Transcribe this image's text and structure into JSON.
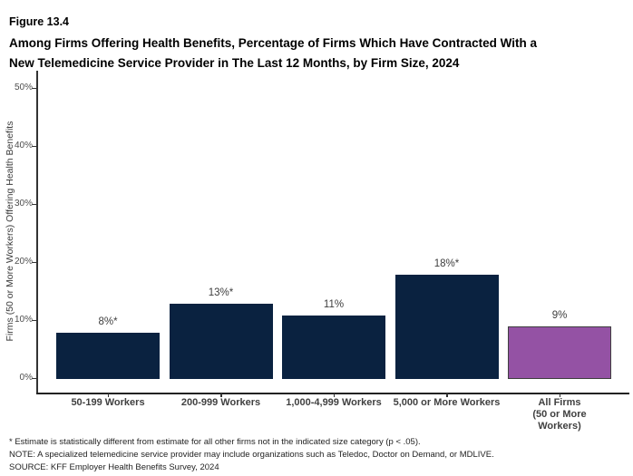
{
  "figure_label": "Figure 13.4",
  "title_line1": "Among Firms Offering Health Benefits, Percentage of Firms Which Have Contracted With a",
  "title_line2": "New Telemedicine Service Provider in The Last 12 Months, by Firm Size, 2024",
  "chart_data": {
    "type": "bar",
    "categories": [
      "50-199 Workers",
      "200-999 Workers",
      "1,000-4,999 Workers",
      "5,000 or More Workers",
      "All Firms\n(50 or More Workers)"
    ],
    "values": [
      8,
      13,
      11,
      18,
      9
    ],
    "value_labels": [
      "8%*",
      "13%*",
      "11%",
      "18%*",
      "9%"
    ],
    "bar_colors": [
      "#0a2240",
      "#0a2240",
      "#0a2240",
      "#0a2240",
      "#9452a4"
    ],
    "title": "Among Firms Offering Health Benefits, Percentage of Firms Which Have Contracted With a New Telemedicine Service Provider in The Last 12 Months, by Firm Size, 2024",
    "xlabel": "",
    "ylabel": "Firms (50 or More Workers) Offering Health Benefits",
    "ylim": [
      0,
      50
    ],
    "ytick_labels": [
      "0%",
      "10%",
      "20%",
      "30%",
      "40%",
      "50%"
    ],
    "grid": false,
    "legend": "none"
  },
  "colors": {
    "bar_navy": "#0a2240",
    "bar_purple": "#9452a4",
    "purple_border": "#3f3f3f",
    "axis": "#333333"
  },
  "footnotes": [
    "* Estimate is statistically different from estimate for all other firms not in the indicated size category (p < .05).",
    "NOTE: A specialized telemedicine service provider may include organizations such as Teledoc, Doctor on Demand, or MDLIVE.",
    "SOURCE: KFF Employer Health Benefits Survey, 2024"
  ]
}
